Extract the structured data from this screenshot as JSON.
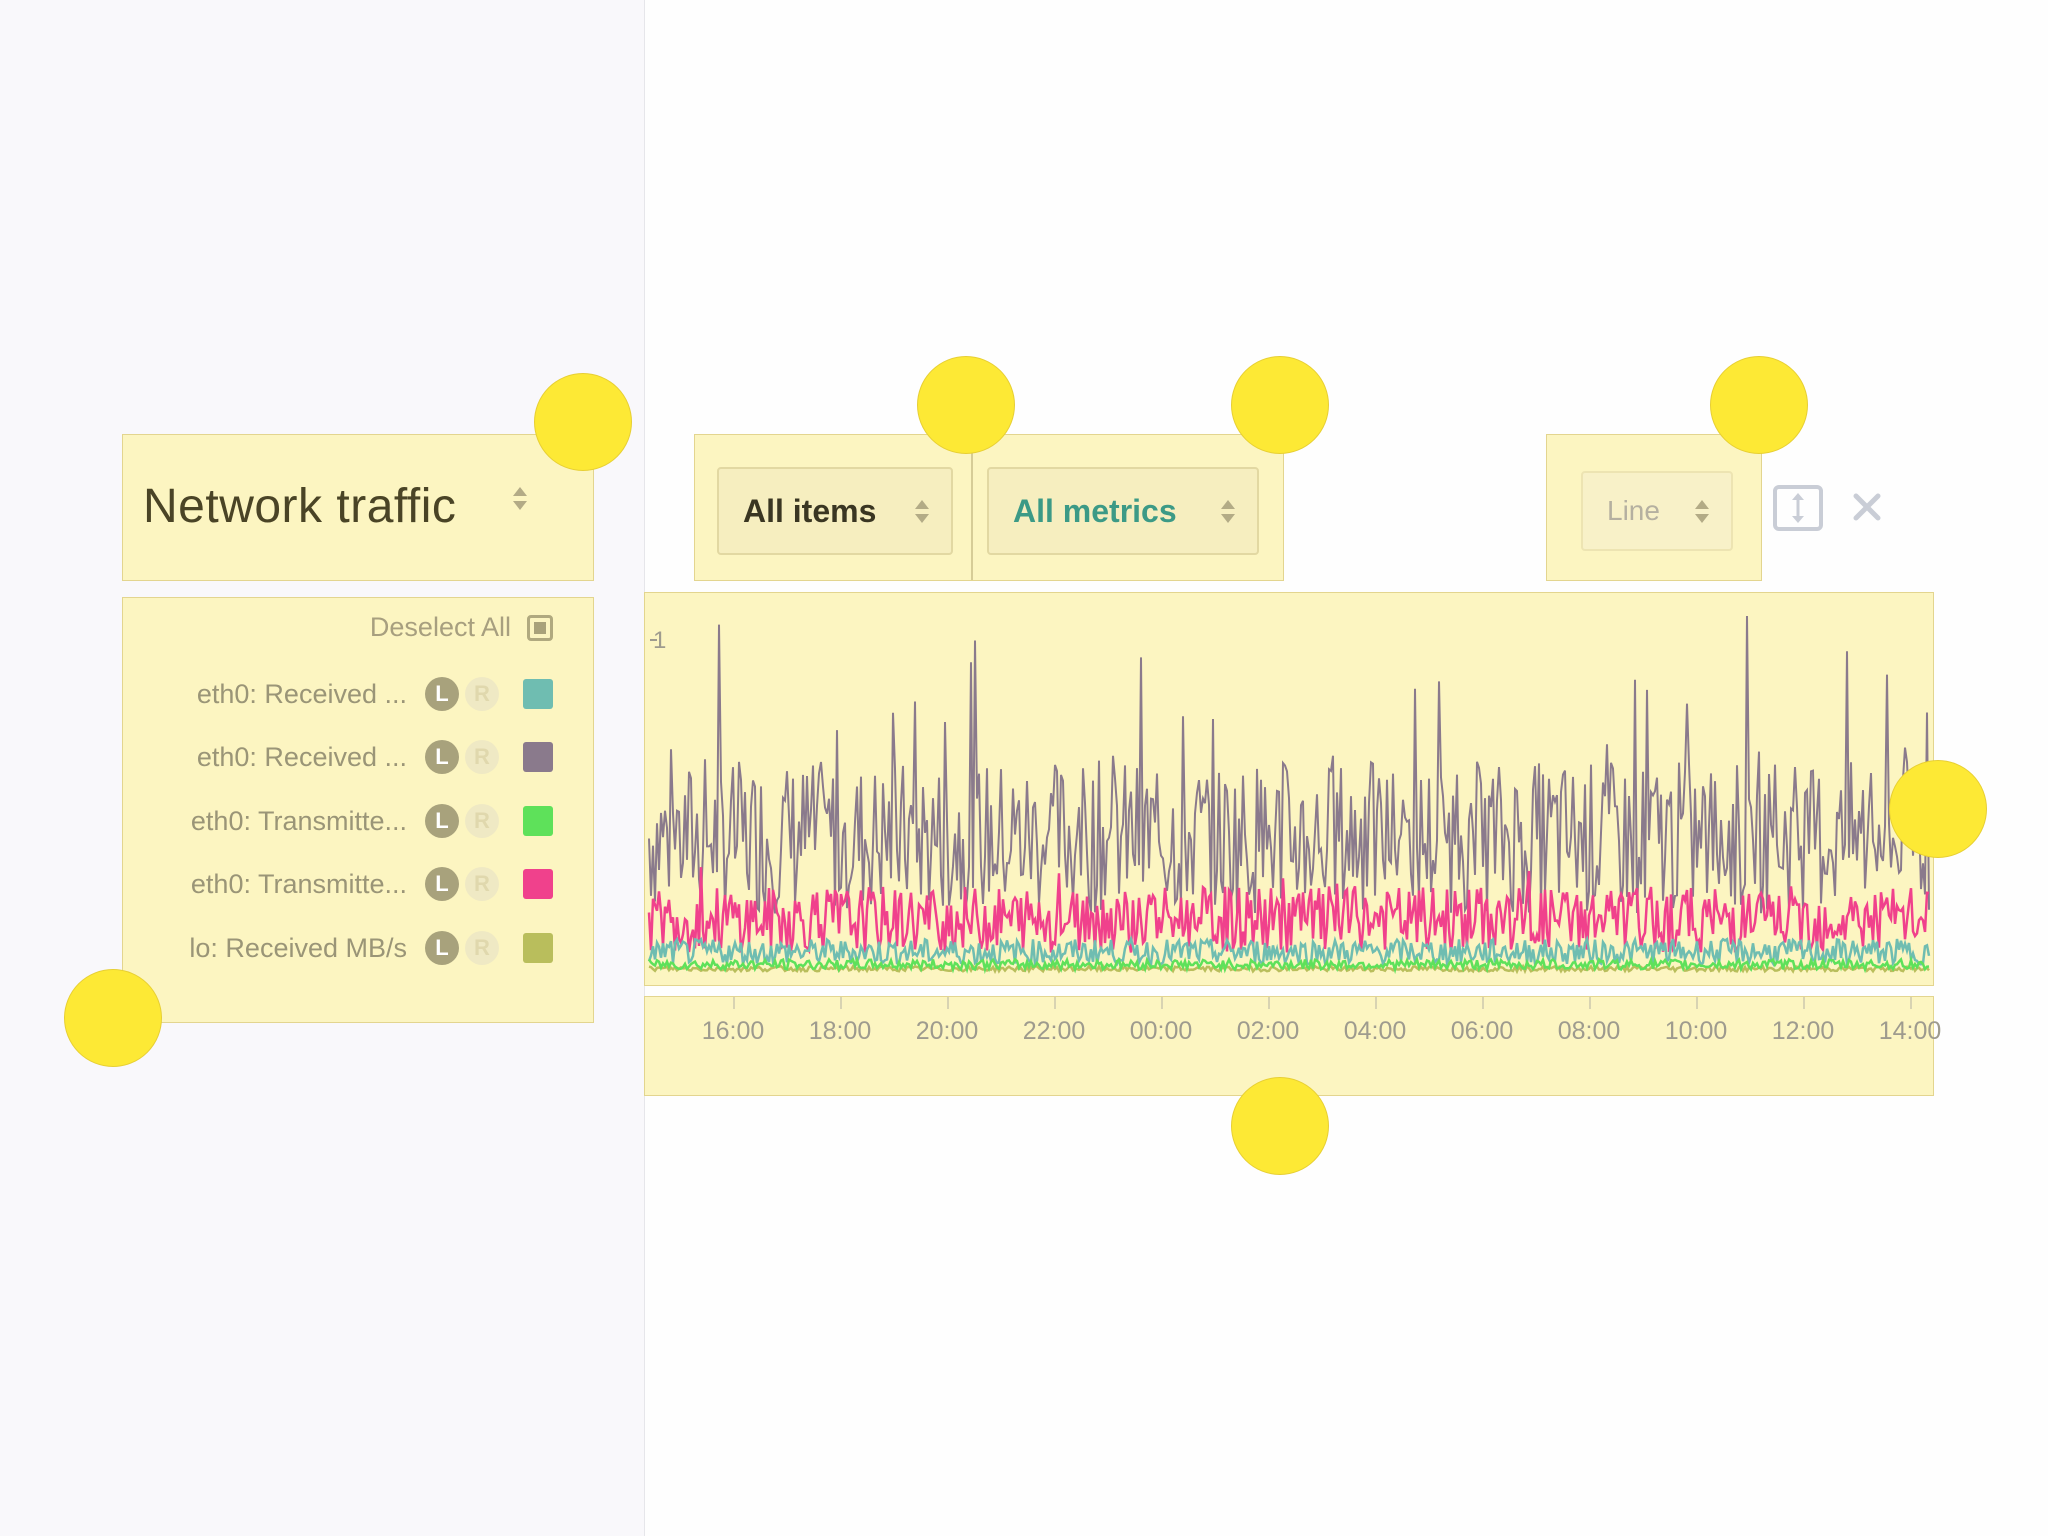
{
  "panel": {
    "title": "Network traffic"
  },
  "legend": {
    "deselect_all_label": "Deselect All",
    "items": [
      {
        "label": "eth0: Received ...",
        "left_axis": "L",
        "right_axis": "R",
        "color": "#6fbdb1"
      },
      {
        "label": "eth0: Received ...",
        "left_axis": "L",
        "right_axis": "R",
        "color": "#8a7a8c"
      },
      {
        "label": "eth0: Transmitte...",
        "left_axis": "L",
        "right_axis": "R",
        "color": "#5ee15a"
      },
      {
        "label": "eth0: Transmitte...",
        "left_axis": "L",
        "right_axis": "R",
        "color": "#f0418c"
      },
      {
        "label": "lo: Received MB/s",
        "left_axis": "L",
        "right_axis": "R",
        "color": "#b9be5c"
      }
    ]
  },
  "toolbar": {
    "items_select": "All items",
    "metrics_select": "All metrics",
    "chart_type_select": "Line",
    "items_color": "#3a3622",
    "metrics_color": "#3c9a86",
    "chart_type_color": "#b5b0a0",
    "resize_icon": "resize-vertical-icon",
    "close_icon": "close-icon"
  },
  "chart_data": {
    "type": "line",
    "y_tick_labels": [
      "1"
    ],
    "x_tick_labels": [
      "16:00",
      "18:00",
      "20:00",
      "22:00",
      "00:00",
      "02:00",
      "04:00",
      "06:00",
      "08:00",
      "10:00",
      "12:00",
      "14:00"
    ],
    "series_colors": [
      "#6fbdb1",
      "#8a7a8c",
      "#5ee15a",
      "#f0418c",
      "#b9be5c"
    ],
    "approx_levels": [
      0.05,
      0.5,
      0.02,
      0.15,
      0.01
    ],
    "grid": false,
    "legend_position": "left"
  },
  "annotation_dots": 7
}
